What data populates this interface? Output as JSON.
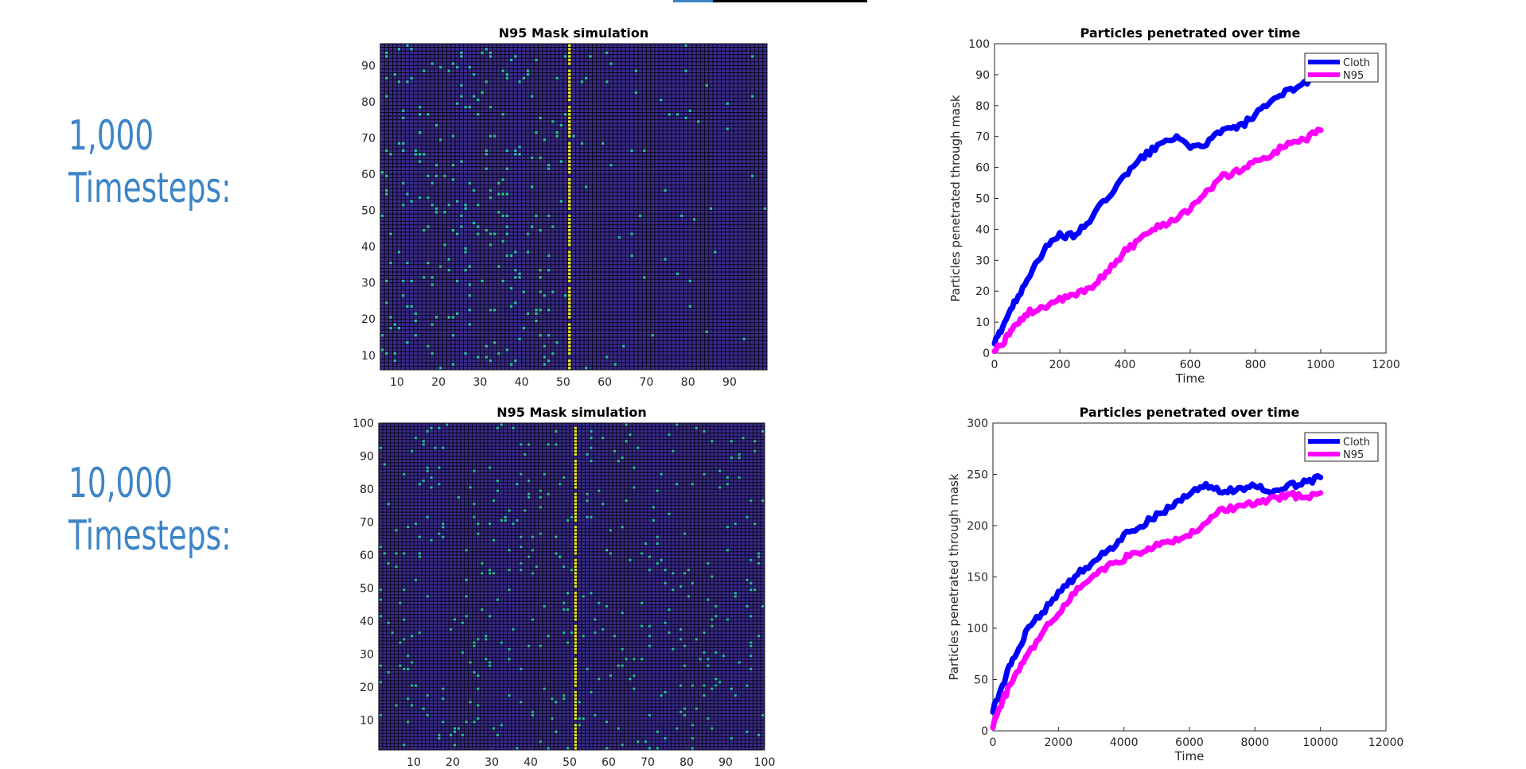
{
  "labels": {
    "row1": {
      "line1": "1,000",
      "line2": "Timesteps:"
    },
    "row2": {
      "line1": "10,000",
      "line2": "Timesteps:"
    }
  },
  "colors": {
    "label": "#3d85c6",
    "grid_bg": "#3a2b8f",
    "grid_line": "#000000",
    "particle": "#28c1a3",
    "mask": "#f5f500",
    "cloth": "#0000ff",
    "n95": "#ff00ff"
  },
  "chart_data": [
    {
      "type": "heatmap",
      "title": "N95 Mask simulation",
      "xlim": [
        6,
        99
      ],
      "ylim": [
        6,
        96
      ],
      "xticks": [
        10,
        20,
        30,
        40,
        50,
        60,
        70,
        80,
        90
      ],
      "yticks": [
        10,
        20,
        30,
        40,
        50,
        60,
        70,
        80,
        90
      ],
      "mask_column": 51,
      "particle_count": 320,
      "particle_density": "higher left of mask"
    },
    {
      "type": "line",
      "title": "Particles penetrated over time",
      "xlabel": "Time",
      "ylabel": "Particles penetrated through mask",
      "xlim": [
        0,
        1200
      ],
      "ylim": [
        0,
        100
      ],
      "xticks": [
        0,
        200,
        400,
        600,
        800,
        1000,
        1200
      ],
      "yticks": [
        0,
        10,
        20,
        30,
        40,
        50,
        60,
        70,
        80,
        90,
        100
      ],
      "legend": "top-right",
      "series": [
        {
          "name": "Cloth",
          "x": [
            0,
            30,
            60,
            100,
            150,
            200,
            250,
            300,
            350,
            400,
            450,
            500,
            550,
            600,
            650,
            700,
            750,
            800,
            850,
            900,
            950,
            1000
          ],
          "y": [
            3,
            10,
            16,
            24,
            33,
            38,
            38,
            44,
            51,
            57,
            63,
            67,
            70,
            66,
            68,
            72,
            73,
            77,
            81,
            85,
            87,
            92
          ]
        },
        {
          "name": "N95",
          "x": [
            0,
            30,
            60,
            100,
            150,
            200,
            250,
            300,
            350,
            400,
            450,
            500,
            550,
            600,
            650,
            700,
            750,
            800,
            850,
            900,
            950,
            1000
          ],
          "y": [
            1,
            4,
            8,
            13,
            15,
            17,
            19,
            21,
            27,
            33,
            37,
            41,
            43,
            47,
            52,
            57,
            59,
            62,
            64,
            68,
            69,
            72
          ]
        }
      ]
    },
    {
      "type": "heatmap",
      "title": "N95 Mask simulation",
      "xlim": [
        1,
        100
      ],
      "ylim": [
        1,
        100
      ],
      "xticks": [
        10,
        20,
        30,
        40,
        50,
        60,
        70,
        80,
        90,
        100
      ],
      "yticks": [
        10,
        20,
        30,
        40,
        50,
        60,
        70,
        80,
        90,
        100
      ],
      "mask_column": 51,
      "particle_count": 420,
      "particle_density": "uniform"
    },
    {
      "type": "line",
      "title": "Particles penetrated over time",
      "xlabel": "Time",
      "ylabel": "Particles penetrated through mask",
      "xlim": [
        0,
        12000
      ],
      "ylim": [
        0,
        300
      ],
      "xticks": [
        0,
        2000,
        4000,
        6000,
        8000,
        10000,
        12000
      ],
      "yticks": [
        0,
        50,
        100,
        150,
        200,
        250,
        300
      ],
      "legend": "top-right",
      "series": [
        {
          "name": "Cloth",
          "x": [
            0,
            300,
            600,
            1000,
            1500,
            2000,
            2500,
            3000,
            3500,
            4000,
            4500,
            5000,
            5500,
            6000,
            6500,
            7000,
            7500,
            8000,
            8500,
            9000,
            9500,
            10000
          ],
          "y": [
            20,
            45,
            70,
            95,
            115,
            135,
            150,
            163,
            175,
            190,
            200,
            210,
            220,
            232,
            238,
            233,
            236,
            240,
            230,
            238,
            242,
            247
          ]
        },
        {
          "name": "N95",
          "x": [
            0,
            300,
            600,
            1000,
            1500,
            2000,
            2500,
            3000,
            3500,
            4000,
            4500,
            5000,
            5500,
            6000,
            6500,
            7000,
            7500,
            8000,
            8500,
            9000,
            9500,
            10000
          ],
          "y": [
            5,
            30,
            50,
            70,
            95,
            115,
            135,
            150,
            160,
            168,
            175,
            180,
            185,
            190,
            205,
            215,
            218,
            222,
            225,
            230,
            228,
            232
          ]
        }
      ]
    }
  ]
}
